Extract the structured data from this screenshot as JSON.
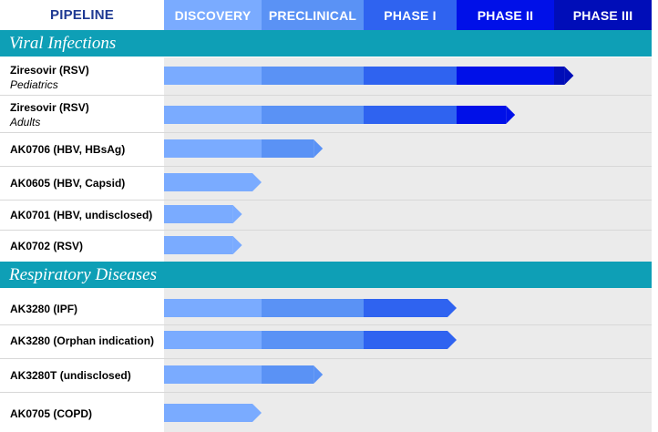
{
  "header": {
    "title": "PIPELINE",
    "stages": [
      {
        "label": "DISCOVERY",
        "color": "#7aabff"
      },
      {
        "label": "PRECLINICAL",
        "color": "#5a92f5"
      },
      {
        "label": "PHASE I",
        "color": "#2f63f0"
      },
      {
        "label": "PHASE II",
        "color": "#0010e8"
      },
      {
        "label": "PHASE III",
        "color": "#000db8"
      }
    ]
  },
  "chart_data": {
    "type": "bar",
    "orientation": "horizontal",
    "x_categories": [
      "DISCOVERY",
      "PRECLINICAL",
      "PHASE I",
      "PHASE II",
      "PHASE III"
    ],
    "groups": [
      {
        "name": "Viral Infections",
        "programs": [
          {
            "name": "Ziresovir (RSV)",
            "subtitle": "Pediatrics",
            "stage": "PHASE III",
            "progress": 4.2
          },
          {
            "name": "Ziresovir (RSV)",
            "subtitle": "Adults",
            "stage": "PHASE II",
            "progress": 3.6
          },
          {
            "name": "AK0706 (HBV, HBsAg)",
            "subtitle": "",
            "stage": "PRECLINICAL",
            "progress": 1.6
          },
          {
            "name": "AK0605 (HBV, Capsid)",
            "subtitle": "",
            "stage": "DISCOVERY",
            "progress": 1.0
          },
          {
            "name": "AK0701 (HBV, undisclosed)",
            "subtitle": "",
            "stage": "DISCOVERY",
            "progress": 0.8
          },
          {
            "name": "AK0702 (RSV)",
            "subtitle": "",
            "stage": "DISCOVERY",
            "progress": 0.8
          }
        ]
      },
      {
        "name": "Respiratory Diseases",
        "programs": [
          {
            "name": "AK3280 (IPF)",
            "subtitle": "",
            "stage": "PHASE I",
            "progress": 3.0
          },
          {
            "name": "AK3280 (Orphan indication)",
            "subtitle": "",
            "stage": "PHASE I",
            "progress": 3.0
          },
          {
            "name": "AK3280T (undisclosed)",
            "subtitle": "",
            "stage": "PRECLINICAL",
            "progress": 1.6
          },
          {
            "name": "AK0705 (COPD)",
            "subtitle": "",
            "stage": "DISCOVERY",
            "progress": 1.0
          }
        ]
      }
    ]
  }
}
